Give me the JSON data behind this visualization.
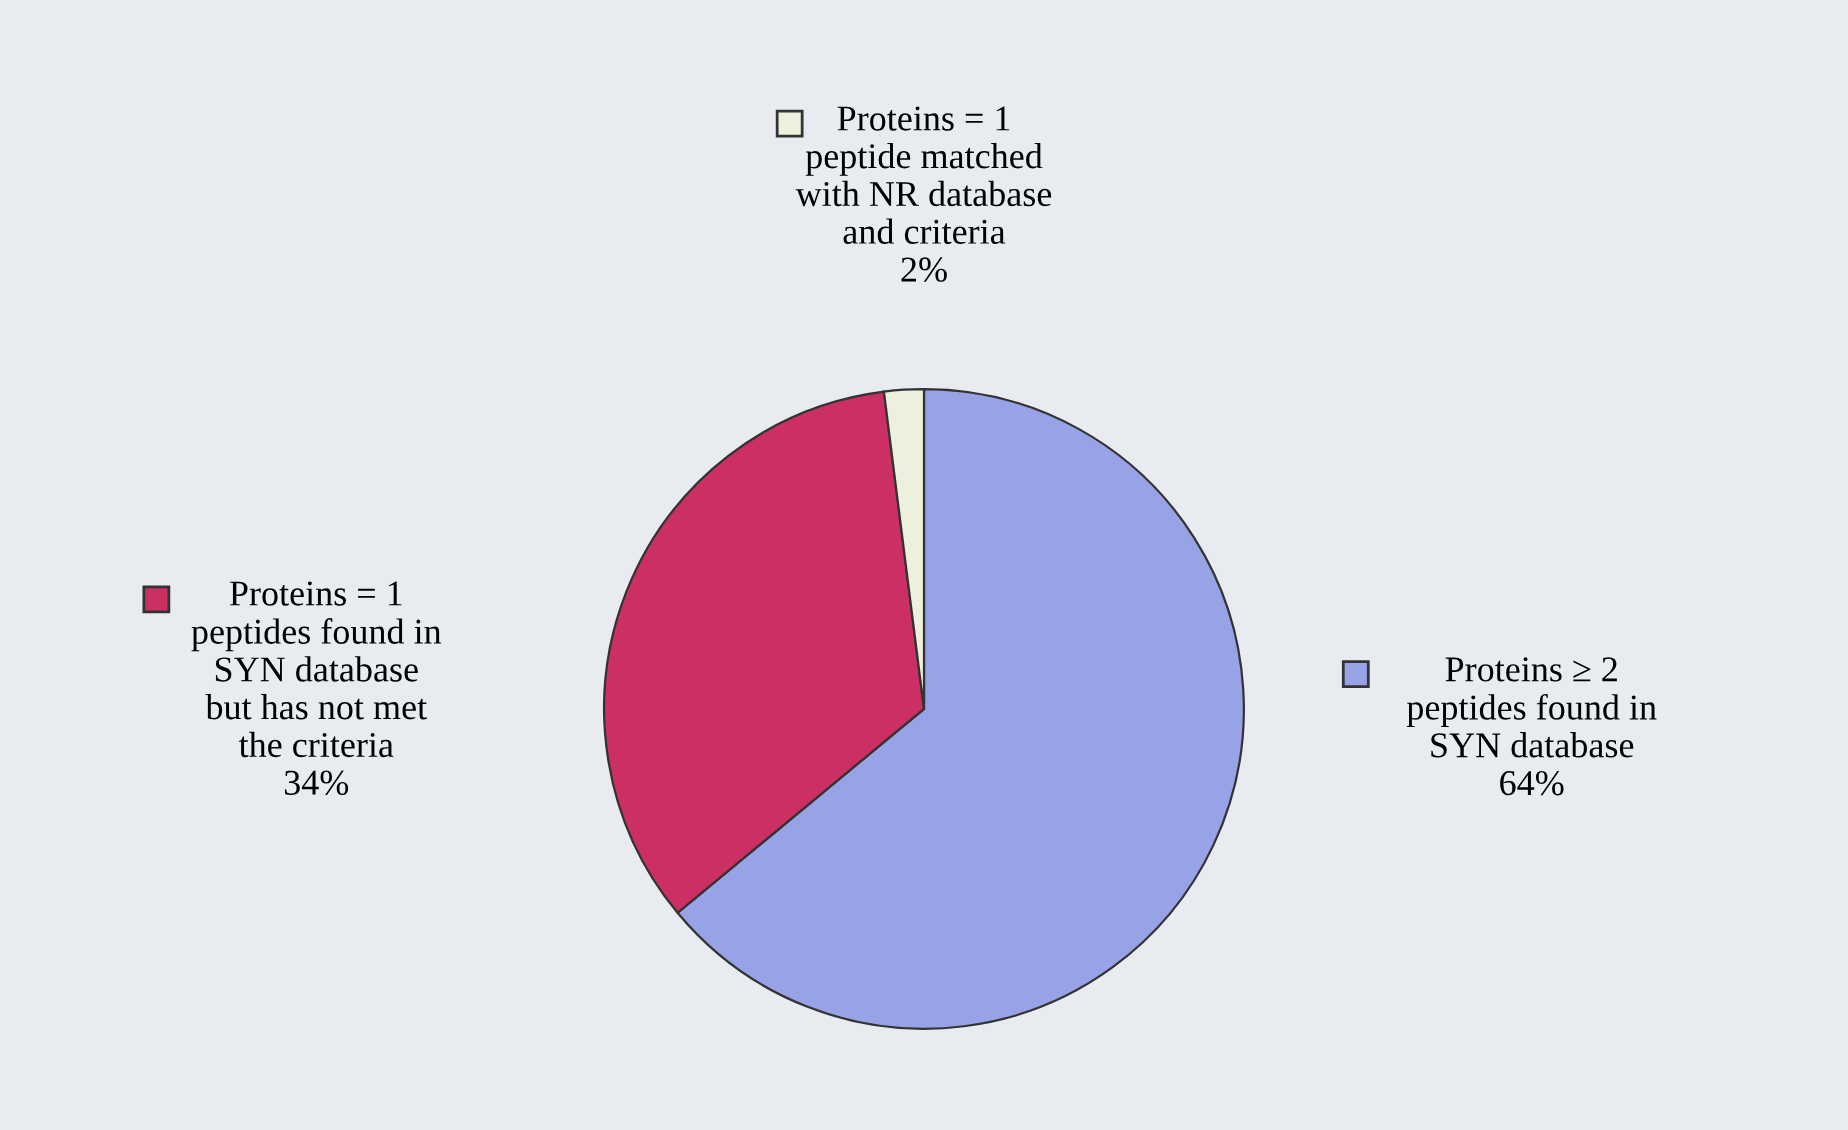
{
  "chart_data": {
    "type": "pie",
    "categories": [
      "Proteins ≥ 2\npeptides found in\nSYN database",
      "Proteins = 1\npeptides found in\nSYN database\nbut has not met\nthe criteria",
      "Proteins = 1\npeptide matched\nwith NR database\nand criteria"
    ],
    "values": [
      64,
      34,
      2
    ],
    "colors": [
      "#97a3e6",
      "#cc2f63",
      "#eef0de"
    ],
    "value_labels": [
      "64%",
      "34%",
      "2%"
    ],
    "legend": "right"
  }
}
